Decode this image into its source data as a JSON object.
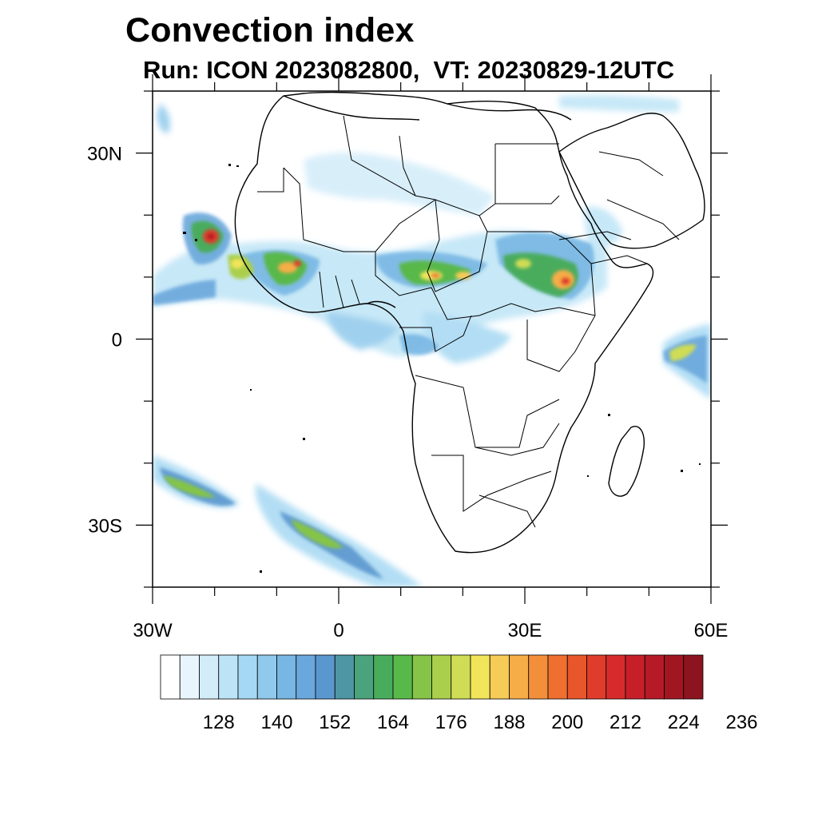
{
  "title": "Convection index",
  "subtitle": "Run: ICON 2023082800,  VT: 20230829-12UTC",
  "map": {
    "lon_range": [
      -30,
      60
    ],
    "lat_range": [
      -40,
      40
    ],
    "y_ticks": [
      {
        "lat": 30,
        "label": "30N"
      },
      {
        "lat": 0,
        "label": "0"
      },
      {
        "lat": -30,
        "label": "30S"
      }
    ],
    "x_ticks": [
      {
        "lon": -30,
        "label": "30W"
      },
      {
        "lon": 0,
        "label": "0"
      },
      {
        "lon": 30,
        "label": "30E"
      },
      {
        "lon": 60,
        "label": "60E"
      }
    ]
  },
  "colorbar": {
    "colors": [
      "#ffffff",
      "#e8f5fc",
      "#d2ecf9",
      "#bde4f6",
      "#a5d8f3",
      "#8fc9ec",
      "#78b7e4",
      "#6aa7dc",
      "#5b97cf",
      "#4e96a4",
      "#4aa37c",
      "#49ac5d",
      "#59b84a",
      "#85c447",
      "#aacf4c",
      "#cfdc55",
      "#f1e45a",
      "#f7cb57",
      "#f6ad47",
      "#f38f3a",
      "#ee6f30",
      "#e8562b",
      "#e03c2c",
      "#d52b2c",
      "#c71f2a",
      "#b51a26",
      "#a01722",
      "#8c141e"
    ],
    "labels": [
      "128",
      "140",
      "152",
      "164",
      "176",
      "188",
      "200",
      "212",
      "224",
      "236"
    ]
  },
  "legend_colors": {
    "low": "#8fc9ec",
    "moderate": "#49ac5d",
    "high": "#f1e45a",
    "very_high": "#e03c2c",
    "extreme": "#a01722"
  }
}
